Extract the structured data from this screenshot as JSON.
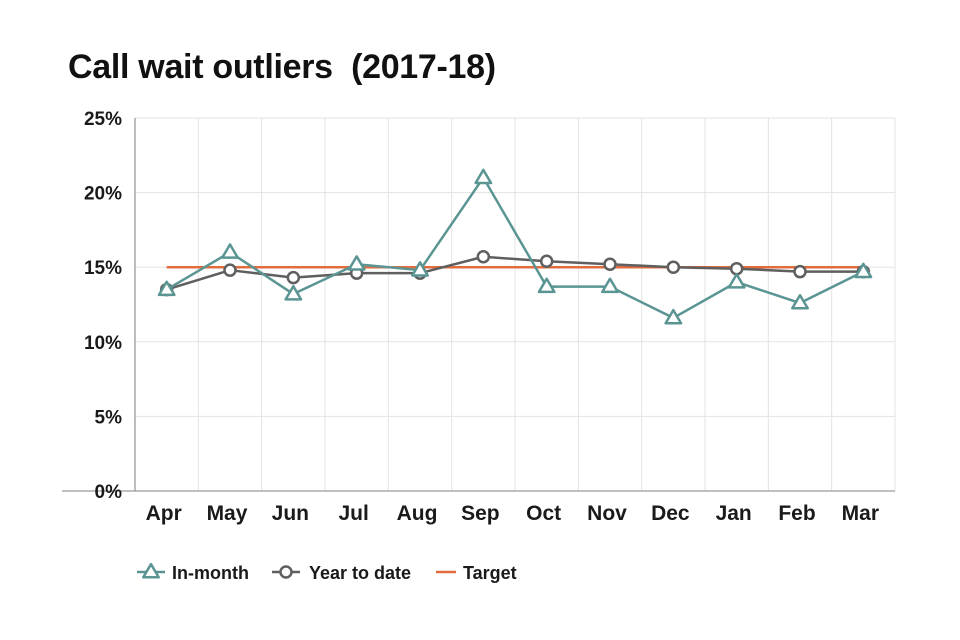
{
  "chart_data": {
    "type": "line",
    "title": "Call wait outliers  (2017-18)",
    "xlabel": "",
    "ylabel": "",
    "categories": [
      "Apr",
      "May",
      "Jun",
      "Jul",
      "Aug",
      "Sep",
      "Oct",
      "Nov",
      "Dec",
      "Jan",
      "Feb",
      "Mar"
    ],
    "ylim": [
      0,
      25
    ],
    "yticks": [
      0,
      5,
      10,
      15,
      20,
      25
    ],
    "ytick_labels": [
      "0%",
      "5%",
      "10%",
      "15%",
      "20%",
      "25%"
    ],
    "grid": true,
    "legend_position": "bottom-left",
    "series": [
      {
        "name": "In-month",
        "marker": "triangle",
        "color": "#5a9593",
        "values": [
          13.5,
          16.0,
          13.2,
          15.2,
          14.8,
          21.0,
          13.7,
          13.7,
          11.6,
          14.0,
          12.6,
          14.7
        ]
      },
      {
        "name": "Year to date",
        "marker": "circle",
        "color": "#5f5f5f",
        "values": [
          13.5,
          14.8,
          14.3,
          14.6,
          14.6,
          15.7,
          15.4,
          15.2,
          15.0,
          14.9,
          14.7,
          14.7
        ]
      },
      {
        "name": "Target",
        "marker": "none",
        "color": "#e36c3f",
        "values": [
          15,
          15,
          15,
          15,
          15,
          15,
          15,
          15,
          15,
          15,
          15,
          15
        ]
      }
    ]
  }
}
